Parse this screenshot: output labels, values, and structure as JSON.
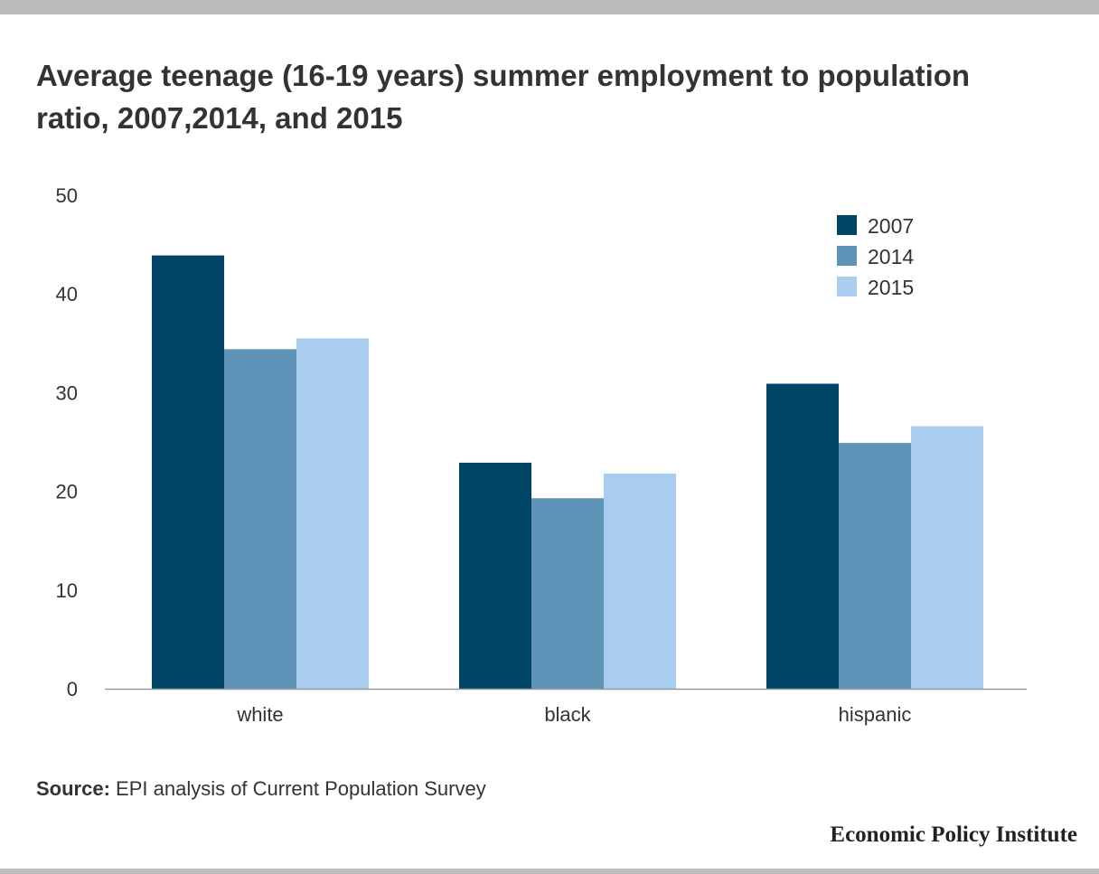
{
  "page": {
    "title": "Average teenage (16-19 years) summer employment to population ratio, 2007,2014, and 2015",
    "source_label": "Source:",
    "source_text": " EPI analysis of Current Population Survey",
    "brand": "Economic Policy Institute"
  },
  "chart_data": {
    "type": "bar",
    "title": "Average teenage (16-19 years) summer employment to population ratio, 2007,2014, and 2015",
    "xlabel": "",
    "ylabel": "",
    "categories": [
      "white",
      "black",
      "hispanic"
    ],
    "series": [
      {
        "name": "2007",
        "values": [
          43.9,
          22.9,
          30.9
        ],
        "color": "#004466"
      },
      {
        "name": "2014",
        "values": [
          34.4,
          19.3,
          24.9
        ],
        "color": "#5f93b7"
      },
      {
        "name": "2015",
        "values": [
          35.5,
          21.8,
          26.6
        ],
        "color": "#a9cdef"
      }
    ],
    "ylim": [
      0,
      50
    ],
    "yticks": [
      "0",
      "10",
      "20",
      "30",
      "40",
      "50"
    ],
    "grid": false,
    "legend_position": "top-right"
  }
}
